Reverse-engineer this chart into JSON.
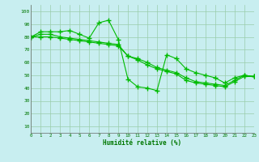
{
  "x": [
    0,
    1,
    2,
    3,
    4,
    5,
    6,
    7,
    8,
    9,
    10,
    11,
    12,
    13,
    14,
    15,
    16,
    17,
    18,
    19,
    20,
    21,
    22,
    23
  ],
  "line1": [
    80,
    84,
    84,
    84,
    85,
    82,
    79,
    91,
    93,
    78,
    47,
    41,
    40,
    38,
    66,
    63,
    55,
    52,
    50,
    48,
    44,
    48,
    50,
    49
  ],
  "line2": [
    80,
    82,
    82,
    80,
    79,
    78,
    77,
    76,
    75,
    74,
    65,
    63,
    60,
    56,
    54,
    52,
    48,
    45,
    44,
    43,
    42,
    46,
    50,
    49
  ],
  "line3": [
    80,
    80,
    80,
    79,
    78,
    77,
    76,
    75,
    74,
    73,
    65,
    62,
    58,
    55,
    53,
    51,
    46,
    44,
    43,
    42,
    41,
    45,
    49,
    49
  ],
  "line_color": "#00bb00",
  "bg_color": "#c8eef0",
  "grid_color": "#99ccaa",
  "xlabel": "Humidité relative (%)",
  "xlabel_color": "#007700",
  "tick_color": "#007700",
  "ylabel_ticks": [
    10,
    20,
    30,
    40,
    50,
    60,
    70,
    80,
    90,
    100
  ],
  "ylim": [
    5,
    105
  ],
  "xlim": [
    0,
    23
  ]
}
